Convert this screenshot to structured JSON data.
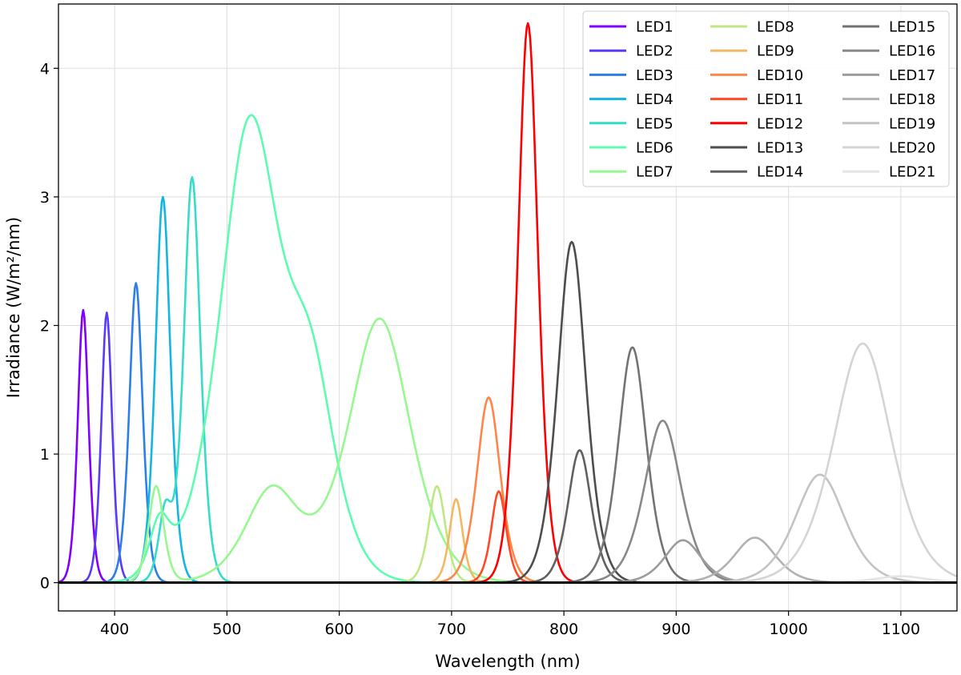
{
  "chart_data": {
    "type": "line",
    "title": "",
    "xlabel": "Wavelength (nm)",
    "ylabel": "Irradiance (W/m²/nm)",
    "xlim": [
      350,
      1150
    ],
    "ylim": [
      -0.22,
      4.5
    ],
    "xticks": [
      400,
      500,
      600,
      700,
      800,
      900,
      1000,
      1100
    ],
    "yticks": [
      0,
      1,
      2,
      3,
      4
    ],
    "grid": true,
    "legend_position": "top-right",
    "legend_columns": 3,
    "series": [
      {
        "name": "LED1",
        "color": "#7f00ff",
        "peaks": [
          {
            "center": 372,
            "height": 2.12,
            "width": 6.5
          }
        ]
      },
      {
        "name": "LED2",
        "color": "#5a39f9",
        "peaks": [
          {
            "center": 393,
            "height": 2.1,
            "width": 6.5
          }
        ]
      },
      {
        "name": "LED3",
        "color": "#2c7fe9",
        "peaks": [
          {
            "center": 419,
            "height": 2.33,
            "width": 8
          }
        ]
      },
      {
        "name": "LED4",
        "color": "#15b5e3",
        "peaks": [
          {
            "center": 443,
            "height": 3.0,
            "width": 9
          }
        ]
      },
      {
        "name": "LED5",
        "color": "#36dcca",
        "peaks": [
          {
            "center": 469,
            "height": 3.15,
            "width": 10
          },
          {
            "center": 445,
            "height": 0.55,
            "width": 8
          }
        ]
      },
      {
        "name": "LED6",
        "color": "#5dfcb0",
        "peaks": [
          {
            "center": 440,
            "height": 0.4,
            "width": 12
          },
          {
            "center": 520,
            "height": 3.5,
            "width": 36
          },
          {
            "center": 575,
            "height": 1.4,
            "width": 30
          }
        ]
      },
      {
        "name": "LED7",
        "color": "#97f890",
        "peaks": [
          {
            "center": 437,
            "height": 0.75,
            "width": 9
          },
          {
            "center": 540,
            "height": 0.72,
            "width": 32
          },
          {
            "center": 636,
            "height": 2.05,
            "width": 37
          }
        ]
      },
      {
        "name": "LED8",
        "color": "#bfe880",
        "peaks": [
          {
            "center": 687,
            "height": 0.75,
            "width": 10
          }
        ]
      },
      {
        "name": "LED9",
        "color": "#f4b862",
        "peaks": [
          {
            "center": 704,
            "height": 0.65,
            "width": 8
          }
        ]
      },
      {
        "name": "LED10",
        "color": "#ff8648",
        "peaks": [
          {
            "center": 733,
            "height": 1.44,
            "width": 14
          }
        ]
      },
      {
        "name": "LED11",
        "color": "#ff4a26",
        "peaks": [
          {
            "center": 742,
            "height": 0.71,
            "width": 9
          }
        ]
      },
      {
        "name": "LED12",
        "color": "#ff0000",
        "peaks": [
          {
            "center": 768,
            "height": 4.35,
            "width": 12
          }
        ]
      },
      {
        "name": "LED13",
        "color": "#4d4d4d",
        "peaks": [
          {
            "center": 807,
            "height": 2.65,
            "width": 17
          }
        ]
      },
      {
        "name": "LED14",
        "color": "#606060",
        "peaks": [
          {
            "center": 814,
            "height": 1.03,
            "width": 14
          }
        ]
      },
      {
        "name": "LED15",
        "color": "#737373",
        "peaks": [
          {
            "center": 861,
            "height": 1.83,
            "width": 17
          }
        ]
      },
      {
        "name": "LED16",
        "color": "#888888",
        "peaks": [
          {
            "center": 888,
            "height": 1.26,
            "width": 22
          }
        ]
      },
      {
        "name": "LED17",
        "color": "#9c9c9c",
        "peaks": [
          {
            "center": 906,
            "height": 0.33,
            "width": 22
          }
        ]
      },
      {
        "name": "LED18",
        "color": "#b1b1b1",
        "peaks": [
          {
            "center": 970,
            "height": 0.35,
            "width": 25
          }
        ]
      },
      {
        "name": "LED19",
        "color": "#c3c3c3",
        "peaks": [
          {
            "center": 1028,
            "height": 0.84,
            "width": 30
          }
        ]
      },
      {
        "name": "LED20",
        "color": "#d4d4d4",
        "peaks": [
          {
            "center": 1066,
            "height": 1.86,
            "width": 35
          }
        ]
      },
      {
        "name": "LED21",
        "color": "#e4e4e4",
        "peaks": [
          {
            "center": 1100,
            "height": 0.05,
            "width": 30
          }
        ]
      }
    ]
  }
}
